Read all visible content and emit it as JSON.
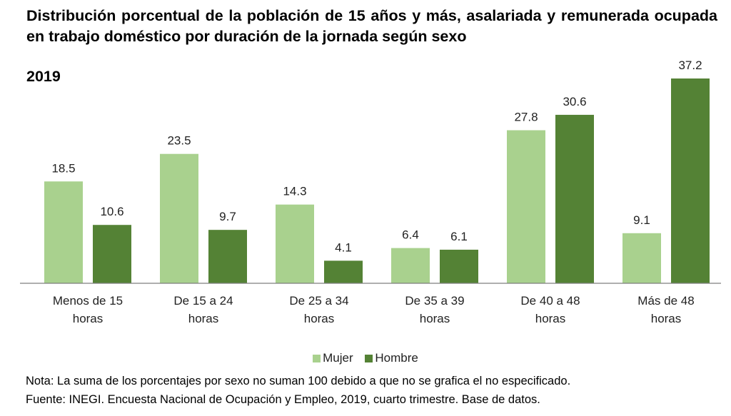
{
  "chart_data": {
    "type": "bar",
    "title": "Distribución porcentual de la población de 15 años y más, asalariada y remunerada ocupada en trabajo doméstico por duración de la jornada según sexo",
    "subtitle": "2019",
    "categories": [
      [
        "Menos de 15",
        "horas"
      ],
      [
        "De 15 a 24",
        "horas"
      ],
      [
        "De 25 a 34",
        "horas"
      ],
      [
        "De 35 a 39",
        "horas"
      ],
      [
        "De 40 a 48",
        "horas"
      ],
      [
        "Más de 48",
        "horas"
      ]
    ],
    "series": [
      {
        "name": "Mujer",
        "color": "#a9d18e",
        "values": [
          18.5,
          23.5,
          14.3,
          6.4,
          27.8,
          9.1
        ]
      },
      {
        "name": "Hombre",
        "color": "#548235",
        "values": [
          10.6,
          9.7,
          4.1,
          6.1,
          30.6,
          37.2
        ]
      }
    ],
    "xlabel": "",
    "ylabel": "",
    "ylim": [
      0,
      37.2
    ],
    "grid": false,
    "legend_position": "bottom"
  },
  "notes": {
    "nota": "Nota: La suma de los porcentajes por sexo no suman 100 debido a que no se grafica el no especificado.",
    "fuente": "Fuente: INEGI. Encuesta Nacional de Ocupación y Empleo, 2019, cuarto trimestre. Base de datos."
  }
}
